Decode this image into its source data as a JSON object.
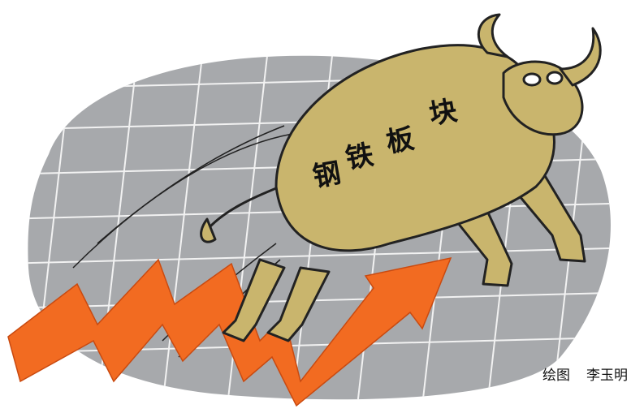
{
  "illustration": {
    "body_text": [
      "钢",
      "铁",
      "板",
      "块"
    ],
    "credit": {
      "label": "绘图",
      "artist": "李玉明"
    }
  }
}
